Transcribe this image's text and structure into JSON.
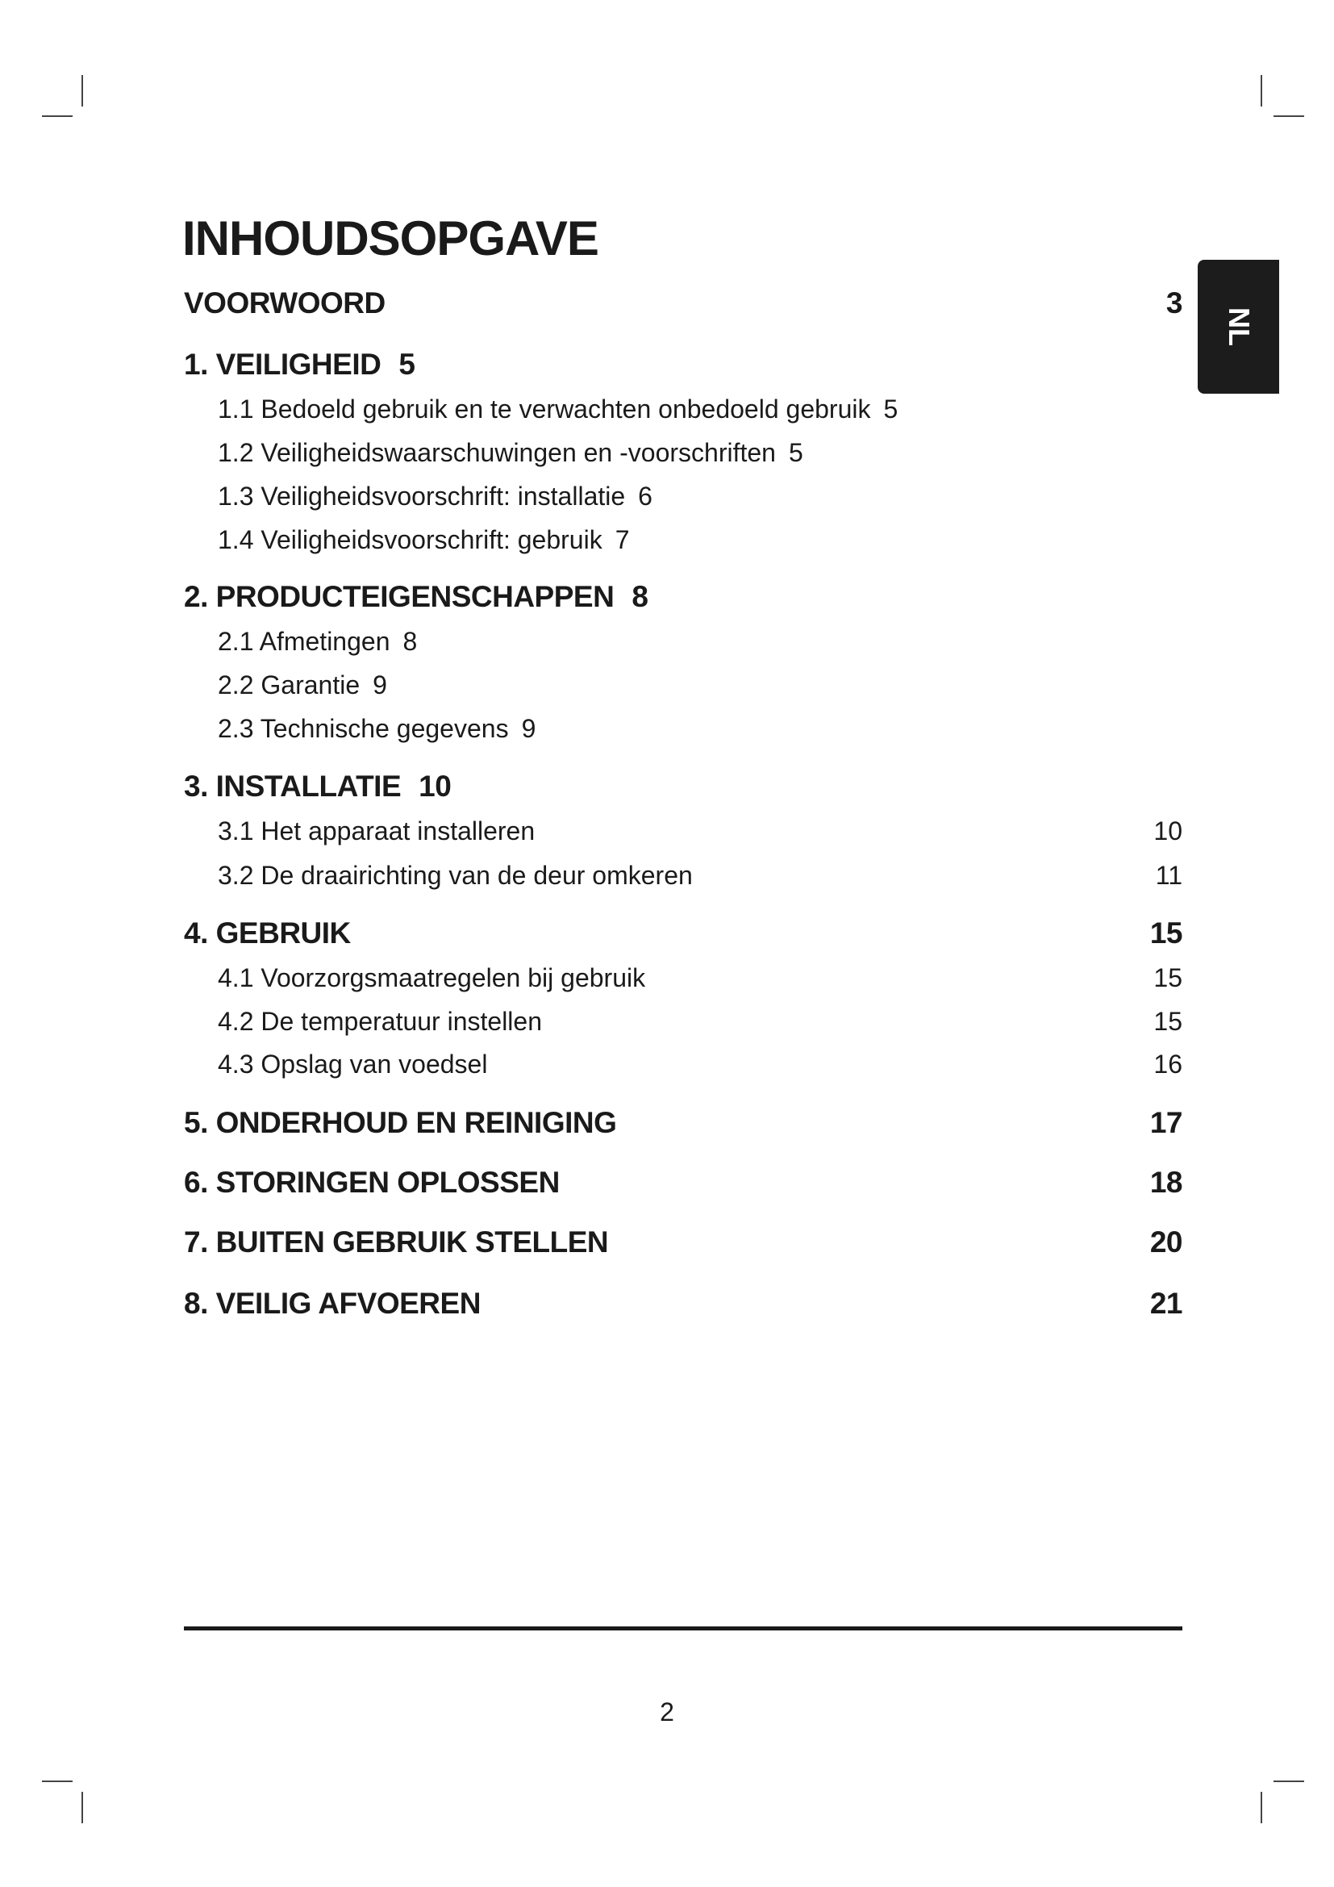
{
  "title": "INHOUDSOPGAVE",
  "language_tab": "NL",
  "entries": [
    {
      "level": 1,
      "label": "VOORWOORD",
      "page": "3",
      "inline": false
    },
    {
      "level": 1,
      "label": "1. VEILIGHEID",
      "page": "5",
      "inline": true
    },
    {
      "level": 2,
      "label": "1.1 Bedoeld gebruik en te verwachten onbedoeld gebruik",
      "page": "5",
      "inline": true
    },
    {
      "level": 2,
      "label": "1.2 Veiligheidswaarschuwingen en -voorschriften",
      "page": "5",
      "inline": true
    },
    {
      "level": 2,
      "label": "1.3 Veiligheidsvoorschrift: installatie",
      "page": "6",
      "inline": true
    },
    {
      "level": 2,
      "label": "1.4 Veiligheidsvoorschrift: gebruik",
      "page": "7",
      "inline": true
    },
    {
      "level": 1,
      "label": "2. PRODUCTEIGENSCHAPPEN",
      "page": "8",
      "inline": true
    },
    {
      "level": 2,
      "label": "2.1 Afmetingen",
      "page": "8",
      "inline": true
    },
    {
      "level": 2,
      "label": "2.2 Garantie",
      "page": "9",
      "inline": true
    },
    {
      "level": 2,
      "label": "2.3 Technische gegevens",
      "page": "9",
      "inline": true
    },
    {
      "level": 1,
      "label": "3. INSTALLATIE",
      "page": "10",
      "inline": true
    },
    {
      "level": 2,
      "label": "3.1 Het apparaat installeren",
      "page": "10",
      "inline": false
    },
    {
      "level": 2,
      "label": "3.2 De draairichting van de deur omkeren",
      "page": "11",
      "inline": false
    },
    {
      "level": 1,
      "label": "4. GEBRUIK",
      "page": "15",
      "inline": false
    },
    {
      "level": 2,
      "label": "4.1 Voorzorgsmaatregelen bij gebruik",
      "page": "15",
      "inline": false
    },
    {
      "level": 2,
      "label": "4.2 De temperatuur instellen",
      "page": "15",
      "inline": false
    },
    {
      "level": 2,
      "label": "4.3 Opslag van voedsel",
      "page": "16",
      "inline": false
    },
    {
      "level": 1,
      "label": "5. ONDERHOUD EN REINIGING",
      "page": "17",
      "inline": false
    },
    {
      "level": 1,
      "label": "6. STORINGEN OPLOSSEN",
      "page": "18",
      "inline": false
    },
    {
      "level": 1,
      "label": "7. BUITEN GEBRUIK STELLEN",
      "page": "20",
      "inline": false
    },
    {
      "level": 1,
      "label": "8. VEILIG AFVOEREN",
      "page": "21",
      "inline": false
    }
  ],
  "page_number": "2"
}
